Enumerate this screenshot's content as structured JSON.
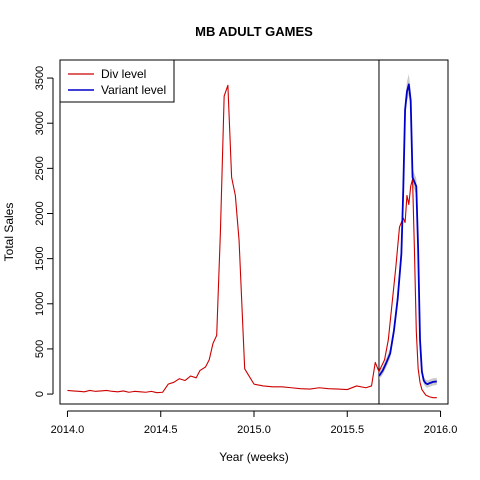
{
  "chart_data": {
    "type": "line",
    "title": "MB ADULT GAMES",
    "xlabel": "Year (weeks)",
    "ylabel": "Total Sales",
    "xlim": [
      2013.96,
      2016.04
    ],
    "ylim": [
      -110,
      3700
    ],
    "x_ticks": [
      2014.0,
      2014.5,
      2015.0,
      2015.5,
      2016.0
    ],
    "x_tick_labels": [
      "2014.0",
      "2014.5",
      "2015.0",
      "2015.5",
      "2016.0"
    ],
    "y_ticks": [
      0,
      500,
      1000,
      1500,
      2000,
      2500,
      3000,
      3500
    ],
    "y_tick_labels": [
      "0",
      "500",
      "1000",
      "1500",
      "2000",
      "2500",
      "3000",
      "3500"
    ],
    "grid": false,
    "legend_position": "top-left",
    "vertical_line_x": 2015.67,
    "series": [
      {
        "name": "Div level",
        "color": "#cc0000",
        "x": [
          2014.0,
          2014.03,
          2014.06,
          2014.09,
          2014.12,
          2014.15,
          2014.18,
          2014.21,
          2014.24,
          2014.27,
          2014.3,
          2014.33,
          2014.36,
          2014.39,
          2014.42,
          2014.45,
          2014.48,
          2014.51,
          2014.54,
          2014.57,
          2014.6,
          2014.63,
          2014.66,
          2014.69,
          2014.71,
          2014.74,
          2014.76,
          2014.78,
          2014.8,
          2014.82,
          2014.84,
          2014.86,
          2014.88,
          2014.9,
          2014.92,
          2014.95,
          2015.0,
          2015.05,
          2015.1,
          2015.15,
          2015.2,
          2015.25,
          2015.3,
          2015.35,
          2015.4,
          2015.45,
          2015.5,
          2015.55,
          2015.6,
          2015.63,
          2015.65,
          2015.67,
          2015.7,
          2015.72,
          2015.74,
          2015.76,
          2015.78,
          2015.79,
          2015.8,
          2015.81,
          2015.82,
          2015.83,
          2015.84,
          2015.85,
          2015.86,
          2015.87,
          2015.88,
          2015.89,
          2015.9,
          2015.92,
          2015.94,
          2015.96,
          2015.98
        ],
        "values": [
          40,
          35,
          30,
          25,
          40,
          30,
          35,
          40,
          30,
          25,
          35,
          20,
          30,
          25,
          20,
          30,
          15,
          20,
          110,
          130,
          170,
          150,
          200,
          180,
          260,
          300,
          380,
          560,
          650,
          1800,
          3300,
          3420,
          2400,
          2200,
          1700,
          280,
          110,
          90,
          80,
          80,
          70,
          60,
          55,
          70,
          60,
          55,
          50,
          90,
          70,
          90,
          350,
          250,
          380,
          600,
          1000,
          1400,
          1850,
          1900,
          1950,
          1900,
          2200,
          2100,
          2300,
          2380,
          1600,
          700,
          280,
          130,
          50,
          -10,
          -30,
          -40,
          -40
        ]
      },
      {
        "name": "Variant level",
        "color": "#0000cc",
        "x": [
          2015.67,
          2015.69,
          2015.71,
          2015.73,
          2015.75,
          2015.77,
          2015.79,
          2015.8,
          2015.81,
          2015.82,
          2015.83,
          2015.84,
          2015.85,
          2015.86,
          2015.87,
          2015.88,
          2015.89,
          2015.9,
          2015.91,
          2015.92,
          2015.93,
          2015.94,
          2015.96,
          2015.98
        ],
        "values": [
          200,
          260,
          350,
          450,
          700,
          1050,
          1550,
          2250,
          3150,
          3350,
          3430,
          3250,
          2400,
          2350,
          2300,
          1600,
          600,
          250,
          150,
          120,
          110,
          120,
          135,
          140
        ],
        "band_halfwidth": [
          40,
          45,
          50,
          55,
          60,
          70,
          80,
          90,
          100,
          110,
          115,
          110,
          90,
          90,
          90,
          80,
          60,
          45,
          40,
          40,
          40,
          40,
          40,
          40
        ]
      }
    ]
  }
}
